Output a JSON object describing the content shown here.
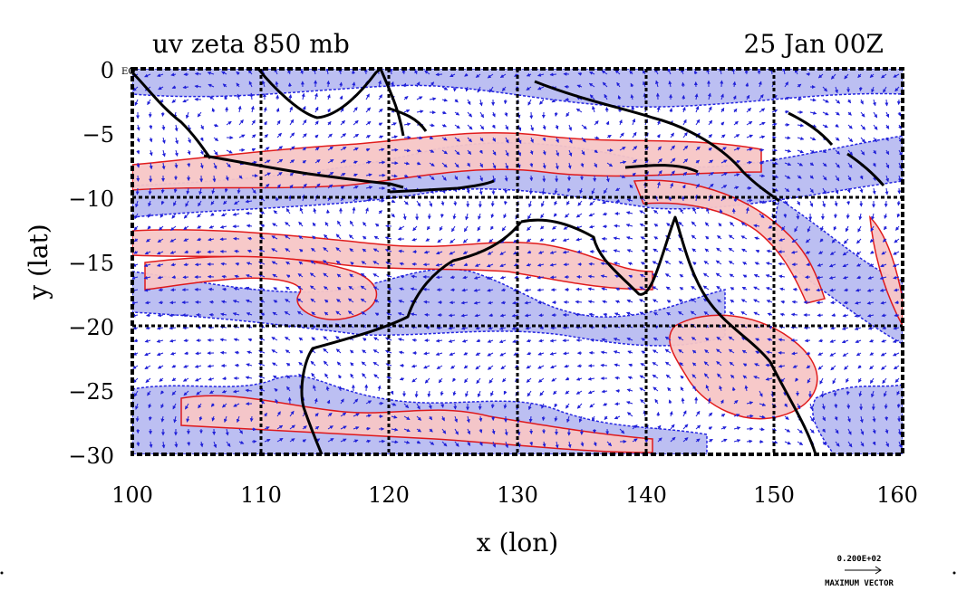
{
  "title_left": "uv zeta 850 mb",
  "title_right": "25 Jan 00Z",
  "axes": {
    "xlabel": "x (lon)",
    "ylabel": "y (lat)",
    "x_ticks": [
      "100",
      "110",
      "120",
      "130",
      "140",
      "150",
      "160"
    ],
    "y_ticks": [
      "0",
      "−5",
      "−10",
      "−15",
      "−20",
      "−25",
      "−30"
    ],
    "corner_label": "EQ",
    "x_range": [
      100,
      160
    ],
    "y_range": [
      -30,
      0
    ],
    "grid_x": [
      110,
      120,
      130,
      140,
      150
    ],
    "grid_y": [
      -10,
      -20
    ]
  },
  "vector_key": {
    "value_label": "0.200E+02",
    "caption": "MAXIMUM VECTOR"
  },
  "colors": {
    "positive_fill": "#f7c7c7",
    "positive_contour": "#e01010",
    "negative_fill": "#b9bcf2",
    "negative_contour": "#1a1ae0",
    "vector": "#2020d8",
    "coast": "#000000"
  }
}
